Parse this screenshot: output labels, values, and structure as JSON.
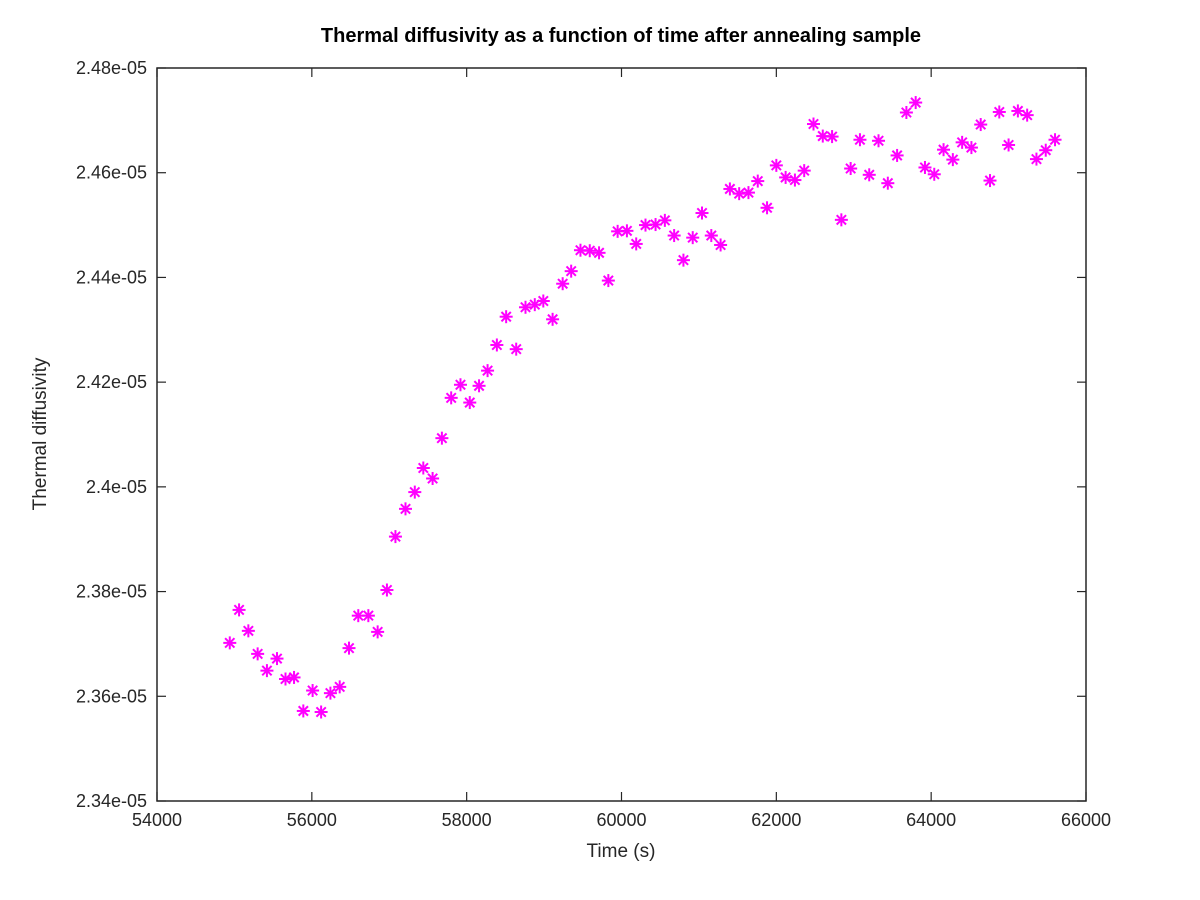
{
  "chart_data": {
    "type": "scatter",
    "title": "Thermal diffusivity as a function of time after annealing sample",
    "xlabel": "Time (s)",
    "ylabel": "Thermal diffusivity",
    "xlim": [
      54000,
      66000
    ],
    "ylim": [
      2.34e-05,
      2.48e-05
    ],
    "xticks": [
      54000,
      56000,
      58000,
      60000,
      62000,
      64000,
      66000
    ],
    "xtick_labels": [
      "54000",
      "56000",
      "58000",
      "60000",
      "62000",
      "64000",
      "66000"
    ],
    "yticks": [
      2.34e-05,
      2.36e-05,
      2.38e-05,
      2.4e-05,
      2.42e-05,
      2.44e-05,
      2.46e-05,
      2.48e-05
    ],
    "ytick_labels": [
      "2.34e-05",
      "2.36e-05",
      "2.38e-05",
      "2.4e-05",
      "2.42e-05",
      "2.44e-05",
      "2.46e-05",
      "2.48e-05"
    ],
    "grid": false,
    "marker": "asterisk",
    "color": "#ff00ff",
    "series": [
      {
        "x": [
          54940,
          55060,
          55180,
          55300,
          55420,
          55550,
          55660,
          55770,
          55890,
          56010,
          56120,
          56240,
          56360,
          56480,
          56600,
          56730,
          56850,
          56970,
          57080,
          57210,
          57330,
          57440,
          57560,
          57680,
          57800,
          57920,
          58040,
          58160,
          58270,
          58390,
          58510,
          58640,
          58760,
          58880,
          58990,
          59110,
          59240,
          59350,
          59470,
          59590,
          59710,
          59830,
          59950,
          60070,
          60190,
          60310,
          60440,
          60560,
          60680,
          60800,
          60920,
          61040,
          61160,
          61280,
          61400,
          61520,
          61640,
          61760,
          61880,
          62000,
          62120,
          62240,
          62360,
          62480,
          62600,
          62720,
          62840,
          62960,
          63080,
          63200,
          63320,
          63440,
          63560,
          63680,
          63800,
          63920,
          64040,
          64160,
          64280,
          64400,
          64520,
          64640,
          64760,
          64880,
          65000,
          65120,
          65240,
          65360,
          65480,
          65600
        ],
        "y": [
          2.3702e-05,
          2.3765e-05,
          2.3725e-05,
          2.3681e-05,
          2.3649e-05,
          2.3672e-05,
          2.3633e-05,
          2.3636e-05,
          2.3572e-05,
          2.3611e-05,
          2.357e-05,
          2.3606e-05,
          2.3618e-05,
          2.3692e-05,
          2.3754e-05,
          2.3754e-05,
          2.3723e-05,
          2.3803e-05,
          2.3905e-05,
          2.3958e-05,
          2.399e-05,
          2.4036e-05,
          2.4016e-05,
          2.4093e-05,
          2.417e-05,
          2.4195e-05,
          2.4161e-05,
          2.4193e-05,
          2.4222e-05,
          2.4271e-05,
          2.4325e-05,
          2.4263e-05,
          2.4343e-05,
          2.4348e-05,
          2.4355e-05,
          2.432e-05,
          2.4388e-05,
          2.4412e-05,
          2.4452e-05,
          2.4451e-05,
          2.4447e-05,
          2.4394e-05,
          2.4488e-05,
          2.4489e-05,
          2.4464e-05,
          2.45e-05,
          2.4501e-05,
          2.4509e-05,
          2.448e-05,
          2.4433e-05,
          2.4476e-05,
          2.4523e-05,
          2.448e-05,
          2.4462e-05,
          2.4569e-05,
          2.456e-05,
          2.4562e-05,
          2.4584e-05,
          2.4533e-05,
          2.4614e-05,
          2.4591e-05,
          2.4586e-05,
          2.4604e-05,
          2.4693e-05,
          2.467e-05,
          2.4669e-05,
          2.451e-05,
          2.4608e-05,
          2.4663e-05,
          2.4596e-05,
          2.4661e-05,
          2.458e-05,
          2.4633e-05,
          2.4715e-05,
          2.4734e-05,
          2.461e-05,
          2.4597e-05,
          2.4644e-05,
          2.4625e-05,
          2.4658e-05,
          2.4648e-05,
          2.4692e-05,
          2.4585e-05,
          2.4716e-05,
          2.4653e-05,
          2.4718e-05,
          2.471e-05,
          2.4626e-05,
          2.4643e-05,
          2.4663e-05
        ]
      }
    ]
  }
}
